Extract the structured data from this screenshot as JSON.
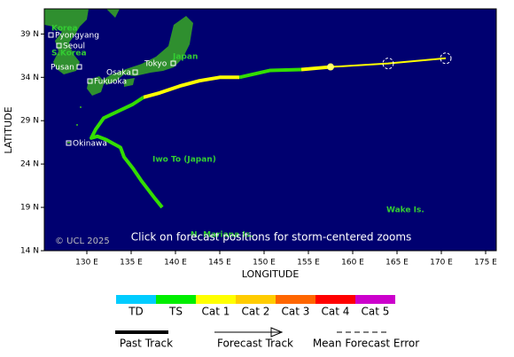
{
  "chart_data": {
    "type": "track",
    "xlabel": "LONGITUDE",
    "ylabel": "LATITUDE",
    "xlim": [
      125.2,
      176.2
    ],
    "ylim": [
      14,
      41.9
    ],
    "xticks": [
      {
        "value": 130,
        "label": "130 E"
      },
      {
        "value": 135,
        "label": "135 E"
      },
      {
        "value": 140,
        "label": "140 E"
      },
      {
        "value": 145,
        "label": "145 E"
      },
      {
        "value": 150,
        "label": "150 E"
      },
      {
        "value": 155,
        "label": "155 E"
      },
      {
        "value": 160,
        "label": "160 E"
      },
      {
        "value": 165,
        "label": "165 E"
      },
      {
        "value": 170,
        "label": "170 E"
      },
      {
        "value": 175,
        "label": "175 E"
      }
    ],
    "yticks": [
      {
        "value": 14,
        "label": "14 N"
      },
      {
        "value": 19,
        "label": "19 N"
      },
      {
        "value": 24,
        "label": "24 N"
      },
      {
        "value": 29,
        "label": "29 N"
      },
      {
        "value": 34,
        "label": "34 N"
      },
      {
        "value": 39,
        "label": "39 N"
      }
    ],
    "series": [
      {
        "color": "#33dd00",
        "track": "past",
        "lon": [
          138.5,
          137.7,
          136.2,
          135.2,
          134.2,
          133.8,
          132.2,
          131.2,
          130.5,
          131.0,
          131.9,
          135.2,
          136.4
        ],
        "lat": [
          19.0,
          20.0,
          22.0,
          23.5,
          24.8,
          25.9,
          26.8,
          27.2,
          27.0,
          28.0,
          29.3,
          30.9,
          31.7
        ]
      },
      {
        "color": "#ffff00",
        "track": "past",
        "lon": [
          136.4,
          138.2,
          140.5,
          142.7,
          145.0,
          147.2
        ],
        "lat": [
          31.7,
          32.2,
          33.0,
          33.6,
          34.0,
          34.0
        ]
      },
      {
        "color": "#33dd00",
        "track": "past",
        "lon": [
          147.2,
          150.7,
          154.2
        ],
        "lat": [
          34.0,
          34.8,
          34.9
        ]
      },
      {
        "color": "#ffff00",
        "track": "past",
        "lon": [
          154.2,
          157.5
        ],
        "lat": [
          34.9,
          35.2
        ]
      },
      {
        "color": "#ffff00",
        "track": "forecast",
        "lon": [
          157.5,
          164.0,
          170.5
        ],
        "lat": [
          35.2,
          35.6,
          36.2
        ]
      }
    ],
    "forecast_points": {
      "lon": [
        157.5,
        164.0,
        170.5
      ],
      "lat": [
        35.2,
        35.6,
        36.2
      ]
    },
    "places": [
      "Korea",
      "Pyongyang",
      "Seoul",
      "S.Korea",
      "Pusan",
      "Osaka",
      "Tokyo",
      "Japan",
      "Fukuoka",
      "Okinawa",
      "Iwo To (Japan)",
      "Wake Is.",
      "N. Mariana Is."
    ],
    "copyright": "© UCL 2025",
    "note": "Click on forecast positions for storm-centered zooms",
    "scale": [
      {
        "label": "TD",
        "color": "#00ccff"
      },
      {
        "label": "TS",
        "color": "#00ee00"
      },
      {
        "label": "Cat 1",
        "color": "#ffff00"
      },
      {
        "label": "Cat 2",
        "color": "#ffcc00"
      },
      {
        "label": "Cat 3",
        "color": "#ff6600"
      },
      {
        "label": "Cat 4",
        "color": "#ff0000"
      },
      {
        "label": "Cat 5",
        "color": "#cc00cc"
      }
    ],
    "legend": [
      "Past Track",
      "Forecast Track",
      "Mean Forecast Error"
    ]
  }
}
